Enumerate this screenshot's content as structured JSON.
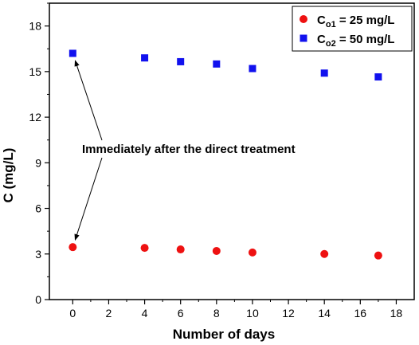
{
  "chart_data": {
    "type": "scatter",
    "title": "",
    "xlabel": "Number of days",
    "ylabel": "C (mg/L)",
    "xlim": [
      -1.3,
      19.0
    ],
    "ylim": [
      0,
      19.5
    ],
    "xticks": [
      0,
      2,
      4,
      6,
      8,
      10,
      12,
      14,
      16,
      18
    ],
    "yticks": [
      0,
      3,
      6,
      9,
      12,
      15,
      18
    ],
    "grid": false,
    "legend_position": "top-right",
    "series": [
      {
        "name_parts": [
          "C",
          "o1",
          " = 25 mg/L"
        ],
        "marker": "circle",
        "color": "#ee1111",
        "x": [
          0,
          4,
          6,
          8,
          10,
          14,
          17
        ],
        "y": [
          3.45,
          3.4,
          3.3,
          3.2,
          3.1,
          3.0,
          2.9
        ]
      },
      {
        "name_parts": [
          "C",
          "o2",
          " = 50 mg/L"
        ],
        "marker": "square",
        "color": "#1111ee",
        "x": [
          0,
          4,
          6,
          8,
          10,
          14,
          17
        ],
        "y": [
          16.2,
          15.9,
          15.65,
          15.5,
          15.2,
          14.9,
          14.65
        ]
      }
    ],
    "annotations": [
      {
        "text": "Immediately after the direct treatment",
        "arrow_targets": [
          [
            0,
            16.2
          ],
          [
            0,
            3.45
          ]
        ]
      }
    ]
  }
}
